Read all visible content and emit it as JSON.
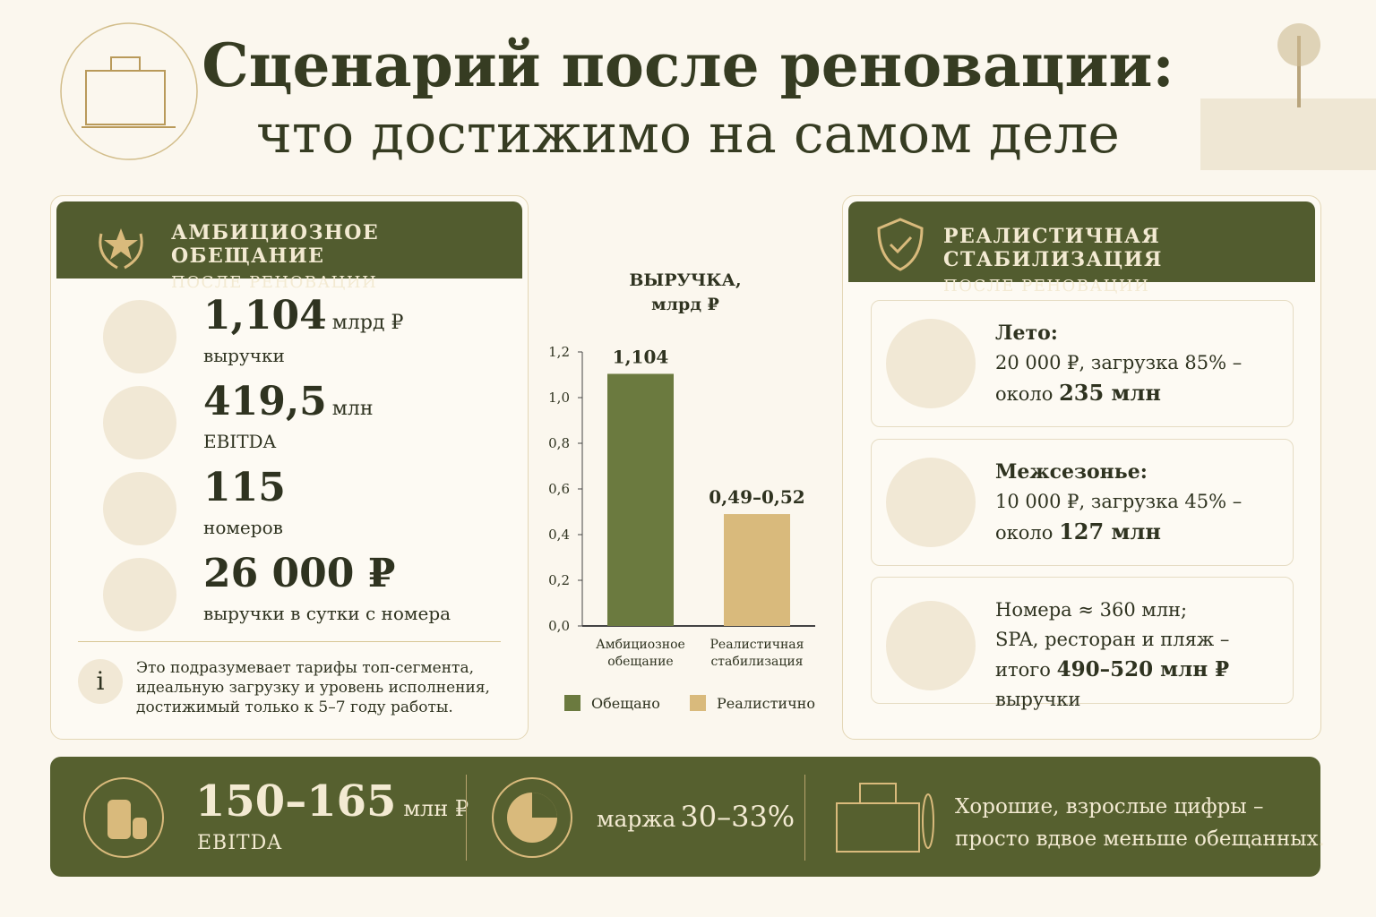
{
  "header": {
    "title_line1": "Сценарий после реновации:",
    "title_line2": "что достижимо на самом деле"
  },
  "left": {
    "title": "АМБИЦИОЗНОЕ ОБЕЩАНИЕ",
    "subtitle": "ПОСЛЕ РЕНОВАЦИИ",
    "items": [
      {
        "value": "1,104",
        "unit": "млрд ₽",
        "label": "выручки"
      },
      {
        "value": "419,5",
        "unit": "млн",
        "label": "EBITDA"
      },
      {
        "value": "115",
        "unit": "",
        "label": "номеров"
      },
      {
        "value": "26 000 ₽",
        "unit": "",
        "label": "выручки в сутки с номера"
      }
    ],
    "note": "Это подразумевает тарифы топ-сегмента, идеальную загрузку и уровень исполнения, достижимый только к 5–7 году работы."
  },
  "chart_data": {
    "type": "bar",
    "title": "ВЫРУЧКА, млрд ₽",
    "categories": [
      "Амбициозное обещание",
      "Реалистичная стабилизация"
    ],
    "series": [
      {
        "name": "Обещано",
        "color": "#6b7a3f",
        "values": [
          1.104,
          null
        ],
        "value_labels": [
          "1,104",
          null
        ]
      },
      {
        "name": "Реалистично",
        "color": "#d9ba7c",
        "values": [
          null,
          0.49
        ],
        "value_labels": [
          null,
          "0,49–0,52"
        ]
      }
    ],
    "ylim": [
      0,
      1.2
    ],
    "yticks": [
      {
        "value": 0,
        "label": "0,0"
      },
      {
        "value": 0.2,
        "label": "0,2"
      },
      {
        "value": 0.4,
        "label": "0,4"
      },
      {
        "value": 0.6,
        "label": "0,6"
      },
      {
        "value": 0.8,
        "label": "0,8"
      },
      {
        "value": 1,
        "label": "1,0"
      },
      {
        "value": 1.2,
        "label": "1,2"
      }
    ],
    "legend": "bottom"
  },
  "right": {
    "title": "РЕАЛИСТИЧНАЯ СТАБИЛИЗАЦИЯ",
    "subtitle": "ПОСЛЕ РЕНОВАЦИИ",
    "cards": [
      {
        "heading": "Лето:",
        "line1": "20 000 ₽, загрузка 85% –",
        "pre": "около",
        "strong": "235 млн"
      },
      {
        "heading": "Межсезонье:",
        "line1": "10 000 ₽, загрузка 45% –",
        "pre": "около",
        "strong": "127 млн"
      }
    ],
    "rooms": {
      "line1": "Номера ≈ 360 млн;",
      "line2": "SPA, ресторан и пляж –",
      "pre": "итого",
      "strong": "490–520 млн ₽",
      "post": "выручки"
    }
  },
  "footer": {
    "ebitda_value": "150–165",
    "ebitda_unit": "млн ₽",
    "ebitda_label": "EBITDA",
    "margin_pre": "маржа",
    "margin_value": "30–33%",
    "conclusion_line1": "Хорошие, взрослые цифры –",
    "conclusion_line2": "просто вдвое меньше обещанных."
  }
}
